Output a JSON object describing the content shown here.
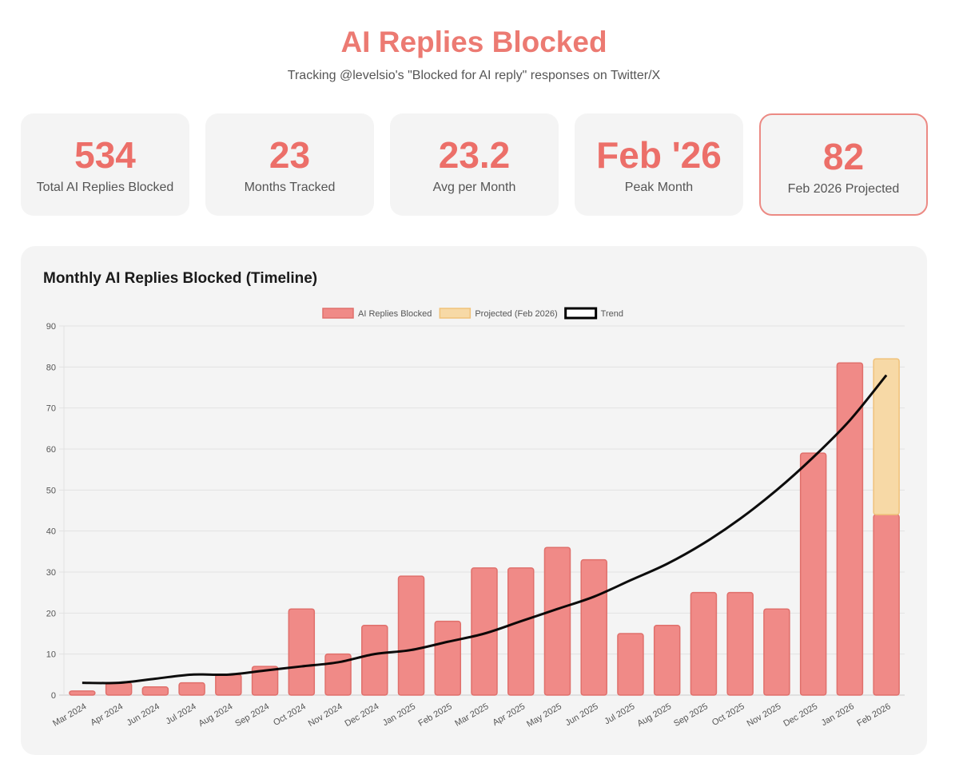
{
  "header": {
    "title": "AI Replies Blocked",
    "subtitle": "Tracking @levelsio's \"Blocked for AI reply\" responses on Twitter/X"
  },
  "stats": [
    {
      "value": "534",
      "label": "Total AI Replies Blocked"
    },
    {
      "value": "23",
      "label": "Months Tracked"
    },
    {
      "value": "23.2",
      "label": "Avg per Month"
    },
    {
      "value": "Feb '26",
      "label": "Peak Month"
    },
    {
      "value": "82",
      "label": "Feb 2026 Projected"
    }
  ],
  "chart_data": {
    "type": "bar",
    "title": "Monthly AI Replies Blocked (Timeline)",
    "categories": [
      "Mar 2024",
      "Apr 2024",
      "Jun 2024",
      "Jul 2024",
      "Aug 2024",
      "Sep 2024",
      "Oct 2024",
      "Nov 2024",
      "Dec 2024",
      "Jan 2025",
      "Feb 2025",
      "Mar 2025",
      "Apr 2025",
      "May 2025",
      "Jun 2025",
      "Jul 2025",
      "Aug 2025",
      "Sep 2025",
      "Oct 2025",
      "Nov 2025",
      "Dec 2025",
      "Jan 2026",
      "Feb 2026"
    ],
    "series": [
      {
        "name": "AI Replies Blocked",
        "type": "bar",
        "color": "#f08a87",
        "values": [
          1,
          3,
          2,
          3,
          5,
          7,
          21,
          10,
          17,
          29,
          18,
          31,
          31,
          36,
          33,
          15,
          17,
          25,
          25,
          21,
          59,
          81,
          44
        ]
      },
      {
        "name": "Projected (Feb 2026)",
        "type": "bar-stacked",
        "color": "#f7d9a6",
        "values": [
          null,
          null,
          null,
          null,
          null,
          null,
          null,
          null,
          null,
          null,
          null,
          null,
          null,
          null,
          null,
          null,
          null,
          null,
          null,
          null,
          null,
          null,
          38
        ]
      },
      {
        "name": "Trend",
        "type": "line",
        "color": "#000000",
        "values": [
          3,
          3,
          4,
          5,
          5,
          6,
          7,
          8,
          10,
          11,
          13,
          15,
          18,
          21,
          24,
          28,
          32,
          37,
          43,
          50,
          58,
          67,
          78
        ]
      }
    ],
    "ylim": [
      0,
      90
    ],
    "yticks": [
      0,
      10,
      20,
      30,
      40,
      50,
      60,
      70,
      80,
      90
    ],
    "grid": true,
    "legend": "top-center"
  }
}
